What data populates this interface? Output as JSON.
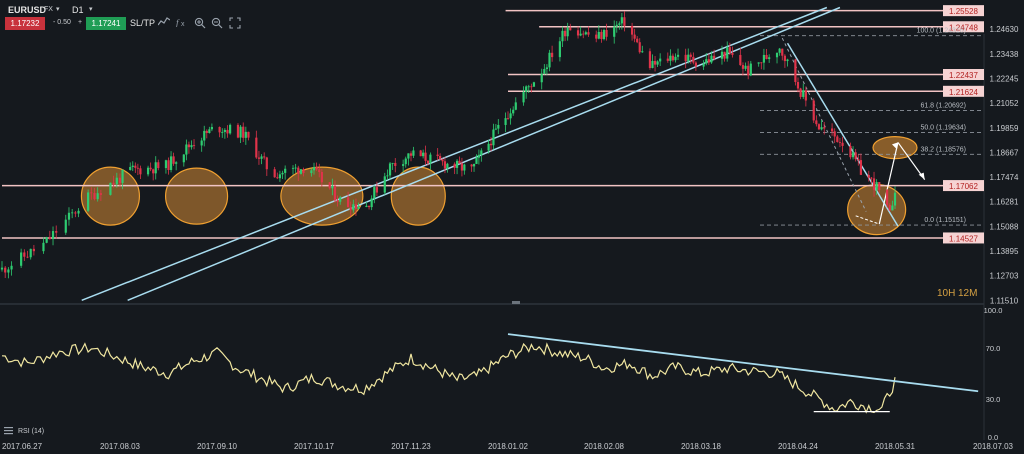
{
  "toolbar": {
    "symbol": "EURUSD",
    "market": "FX",
    "timeframe": "D1",
    "bid": "1.17232",
    "spread": "- 0.50",
    "plus": "+",
    "ask": "1.17241",
    "sltp": "SL/TP",
    "icons": [
      "chart-type-icon",
      "indicators-icon",
      "zoom-in-icon",
      "zoom-out-icon",
      "fit-icon"
    ]
  },
  "chart_data": {
    "type": "candlestick",
    "price_axis": {
      "ylim": [
        1.1151,
        1.2568
      ],
      "tick_labels": [
        "1.24630",
        "1.23438",
        "1.22245",
        "1.21052",
        "1.19859",
        "1.18667",
        "1.17474",
        "1.16281",
        "1.15088",
        "1.13895",
        "1.12703",
        "1.11510"
      ],
      "highlighted_labels": [
        "1.25528",
        "1.24748",
        "1.22437",
        "1.21624",
        "1.17062",
        "1.14527"
      ]
    },
    "horizontal_levels": [
      1.25528,
      1.24748,
      1.22437,
      1.21624,
      1.17062,
      1.14527
    ],
    "fibonacci": [
      {
        "label": "100.0 (1.24316)",
        "value": 1.24316
      },
      {
        "label": "61.8 (1.20692)",
        "value": 1.20692
      },
      {
        "label": "50.0 (1.19634)",
        "value": 1.19634
      },
      {
        "label": "38.2 (1.18576)",
        "value": 1.18576
      },
      {
        "label": "0.0 (1.15151)",
        "value": 1.15151
      }
    ],
    "date_labels": [
      "2017.06.27",
      "2017.08.03",
      "2017.09.10",
      "2017.10.17",
      "2017.11.23",
      "2018.01.02",
      "2018.02.08",
      "2018.03.18",
      "2018.04.24",
      "2018.05.31",
      "2018.07.03"
    ],
    "period_selector": {
      "first": "10H",
      "second": "12M"
    },
    "bullish_color": "#2ecc71",
    "bearish_color": "#e0334a",
    "level_color": "#f2c4c4",
    "trendline_color": "#a8dcef",
    "highlight_color": "#f0a030",
    "indicator": {
      "name": "RSI (14)",
      "ylim": [
        0.0,
        100.0
      ],
      "tick_labels": [
        "100.0",
        "70.0",
        "30.0",
        "0.0"
      ],
      "line_color": "#f0e6a0"
    }
  }
}
